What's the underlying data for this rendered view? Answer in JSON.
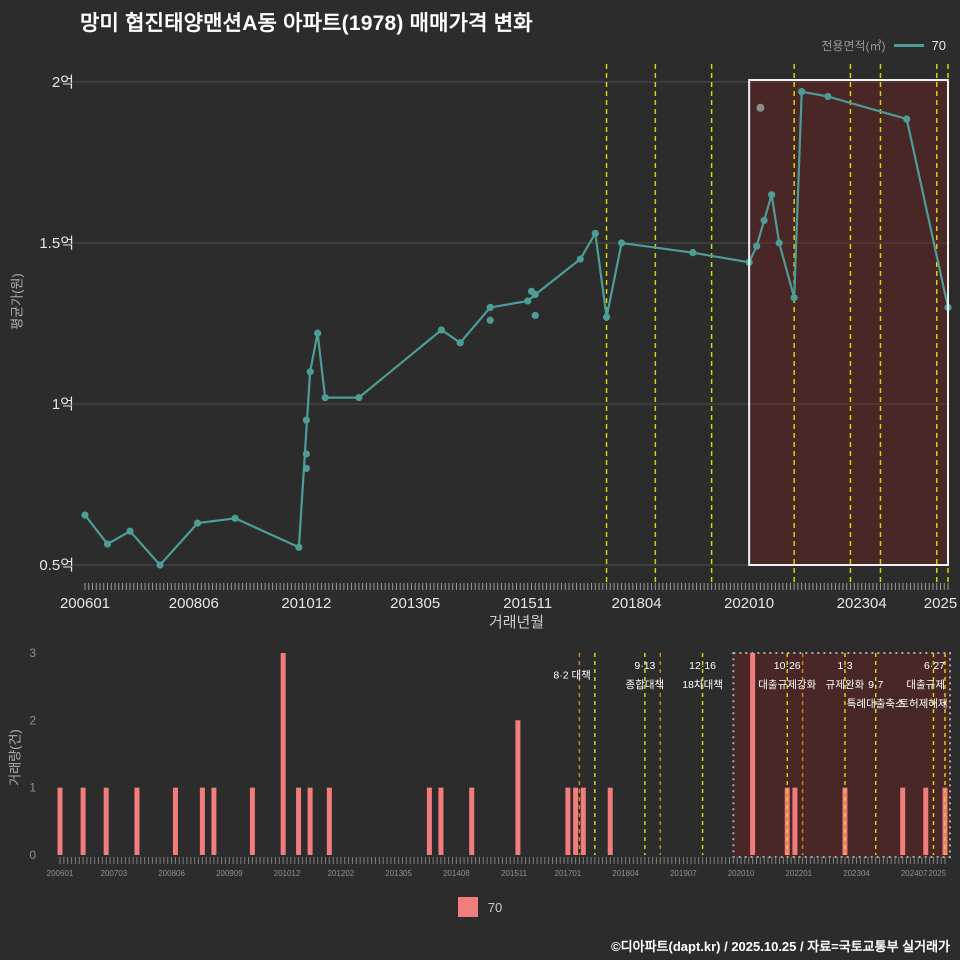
{
  "title": "망미 협진태양맨션A동 아파트(1978) 매매가격 변화",
  "legend_top": {
    "label": "전용면적(㎡)",
    "value": "70"
  },
  "legend_bottom": {
    "value": "70"
  },
  "footer": "©디아파트(dapt.kr) / 2025.10.25 / 자료=국토교통부 실거래가",
  "colors": {
    "background": "#2c2c2c",
    "series_teal": "#4d9d96",
    "bar_red": "#f17d7d",
    "policy_yellow": "#d4d40a",
    "policy_orange": "#c8841e",
    "grid": "#4f4f4f",
    "axis_text": "#e6e6e6",
    "muted_text": "#8f8f8f",
    "highlight_fill": "rgba(140,30,30,0.32)",
    "highlight_border": "#f2f2f2",
    "outlier_grey": "#8c8c8c",
    "annotation_text": "#ffffff"
  },
  "chart_data": [
    {
      "type": "line",
      "title": "평균 매매가격 추이",
      "xlabel": "거래년월",
      "ylabel": "평균가(원)",
      "x_end": "202503",
      "ylim_eok": [
        0.5,
        2.0
      ],
      "y_ticks": [
        {
          "label": "0.5억",
          "value": 0.5
        },
        {
          "label": "1억",
          "value": 1.0
        },
        {
          "label": "1.5억",
          "value": 1.5
        },
        {
          "label": "2억",
          "value": 2.0
        }
      ],
      "x_ticks": [
        {
          "label": "200601",
          "at": "200601"
        },
        {
          "label": "200806",
          "at": "200806"
        },
        {
          "label": "201012",
          "at": "201012"
        },
        {
          "label": "201305",
          "at": "201305"
        },
        {
          "label": "201511",
          "at": "201511"
        },
        {
          "label": "201804",
          "at": "201804"
        },
        {
          "label": "202010",
          "at": "202010"
        },
        {
          "label": "202304",
          "at": "202304"
        },
        {
          "label": "2025",
          "at": "202501"
        }
      ],
      "series": [
        {
          "name": "70",
          "unit": "억원",
          "points": [
            [
              "200601",
              0.655
            ],
            [
              "200607",
              0.565
            ],
            [
              "200701",
              0.605
            ],
            [
              "200709",
              0.5
            ],
            [
              "200807",
              0.63
            ],
            [
              "200905",
              0.645
            ],
            [
              "201010",
              0.555
            ],
            [
              "201101",
              1.1
            ],
            [
              "201103",
              1.22
            ],
            [
              "201105",
              1.02
            ],
            [
              "201202",
              1.02
            ],
            [
              "201312",
              1.23
            ],
            [
              "201405",
              1.19
            ],
            [
              "201501",
              1.3
            ],
            [
              "201511",
              1.32
            ],
            [
              "201601",
              1.34
            ],
            [
              "201701",
              1.45
            ],
            [
              "201705",
              1.53
            ],
            [
              "201708",
              1.27
            ],
            [
              "201712",
              1.5
            ],
            [
              "201907",
              1.47
            ],
            [
              "202010",
              1.44
            ],
            [
              "202012",
              1.49
            ],
            [
              "202102",
              1.57
            ],
            [
              "202104",
              1.65
            ],
            [
              "202106",
              1.5
            ],
            [
              "202110",
              1.33
            ],
            [
              "202112",
              1.97
            ],
            [
              "202207",
              1.955
            ],
            [
              "202404",
              1.885
            ],
            [
              "202503",
              1.3
            ]
          ]
        }
      ],
      "extra_points": [
        [
          "201012",
          0.8
        ],
        [
          "201012",
          0.845
        ],
        [
          "201012",
          0.95
        ],
        [
          "201501",
          1.26
        ],
        [
          "201512",
          1.35
        ],
        [
          "201601",
          1.275
        ]
      ],
      "outlier_points": [
        [
          "202101",
          1.92
        ]
      ],
      "highlight": {
        "from": "202010",
        "to": "202503"
      },
      "policy_lines": [
        {
          "at": "201708",
          "color": "yellow"
        },
        {
          "at": "201809",
          "color": "yellow"
        },
        {
          "at": "201912",
          "color": "yellow"
        },
        {
          "at": "202110",
          "color": "yellow"
        },
        {
          "at": "202301",
          "color": "yellow"
        },
        {
          "at": "202309",
          "color": "yellow"
        },
        {
          "at": "202412",
          "color": "yellow"
        },
        {
          "at": "202503",
          "color": "yellow"
        }
      ]
    },
    {
      "type": "bar",
      "ylabel": "거래량(건)",
      "x_end": "202503",
      "ylim": [
        0,
        3
      ],
      "y_ticks": [
        0,
        1,
        2,
        3
      ],
      "x_ticks": [
        {
          "label": "200601",
          "at": "200601"
        },
        {
          "label": "200703",
          "at": "200703"
        },
        {
          "label": "200806",
          "at": "200806"
        },
        {
          "label": "200909",
          "at": "200909"
        },
        {
          "label": "201012",
          "at": "201012"
        },
        {
          "label": "201202",
          "at": "201202"
        },
        {
          "label": "201305",
          "at": "201305"
        },
        {
          "label": "201408",
          "at": "201408"
        },
        {
          "label": "201511",
          "at": "201511"
        },
        {
          "label": "201701",
          "at": "201701"
        },
        {
          "label": "201804",
          "at": "201804"
        },
        {
          "label": "201907",
          "at": "201907"
        },
        {
          "label": "202010",
          "at": "202010"
        },
        {
          "label": "202201",
          "at": "202201"
        },
        {
          "label": "202304",
          "at": "202304"
        },
        {
          "label": "202407",
          "at": "202407"
        },
        {
          "label": "2025",
          "at": "202501"
        }
      ],
      "bars": [
        [
          "200601",
          1
        ],
        [
          "200607",
          1
        ],
        [
          "200701",
          1
        ],
        [
          "200709",
          1
        ],
        [
          "200807",
          1
        ],
        [
          "200902",
          1
        ],
        [
          "200905",
          1
        ],
        [
          "201003",
          1
        ],
        [
          "201011",
          3
        ],
        [
          "201103",
          1
        ],
        [
          "201106",
          1
        ],
        [
          "201111",
          1
        ],
        [
          "201401",
          1
        ],
        [
          "201404",
          1
        ],
        [
          "201412",
          1
        ],
        [
          "201512",
          2
        ],
        [
          "201701",
          1
        ],
        [
          "201703",
          1
        ],
        [
          "201705",
          1
        ],
        [
          "201712",
          1
        ],
        [
          "202101",
          3
        ],
        [
          "202110",
          1
        ],
        [
          "202112",
          1
        ],
        [
          "202301",
          1
        ],
        [
          "202404",
          1
        ],
        [
          "202410",
          1
        ],
        [
          "202503",
          1
        ]
      ],
      "highlight": {
        "from": "202008",
        "to": "202503"
      },
      "policy_lines": [
        {
          "at": "201708",
          "color": "yellow"
        },
        {
          "at": "201809",
          "color": "yellow"
        },
        {
          "at": "201912",
          "color": "yellow"
        },
        {
          "at": "202110",
          "color": "yellow"
        },
        {
          "at": "202301",
          "color": "yellow"
        },
        {
          "at": "202309",
          "color": "yellow"
        },
        {
          "at": "202412",
          "color": "yellow"
        },
        {
          "at": "202503",
          "color": "yellow"
        },
        {
          "at": "201704",
          "color": "orange"
        },
        {
          "at": "201901",
          "color": "orange"
        },
        {
          "at": "202202",
          "color": "orange"
        }
      ],
      "annotations": [
        {
          "at": "201708",
          "anchor": "end",
          "dx": -4,
          "rows": [
            [
              1.5,
              "8·2 대책"
            ]
          ]
        },
        {
          "at": "201809",
          "anchor": "middle",
          "rows": [
            [
              1,
              "9·13"
            ],
            [
              2,
              "종합대책"
            ]
          ]
        },
        {
          "at": "201912",
          "anchor": "middle",
          "rows": [
            [
              1,
              "12·16"
            ],
            [
              2,
              "18차대책"
            ]
          ]
        },
        {
          "at": "202110",
          "anchor": "middle",
          "rows": [
            [
              1,
              "10·26"
            ],
            [
              2,
              "대출규제강화"
            ]
          ]
        },
        {
          "at": "202301",
          "anchor": "middle",
          "rows": [
            [
              1,
              "1·3"
            ],
            [
              2,
              "규제완화"
            ]
          ]
        },
        {
          "at": "202309",
          "anchor": "middle",
          "rows": [
            [
              2,
              "9·7"
            ],
            [
              3,
              "특례대출축소"
            ]
          ]
        },
        {
          "at": "202412",
          "anchor": "middle",
          "dx": -10,
          "rows": [
            [
              3,
              "토허제해제"
            ]
          ]
        },
        {
          "at": "202503",
          "anchor": "end",
          "rows": [
            [
              1,
              "6·27"
            ],
            [
              2,
              "대출규제"
            ]
          ]
        }
      ]
    }
  ]
}
